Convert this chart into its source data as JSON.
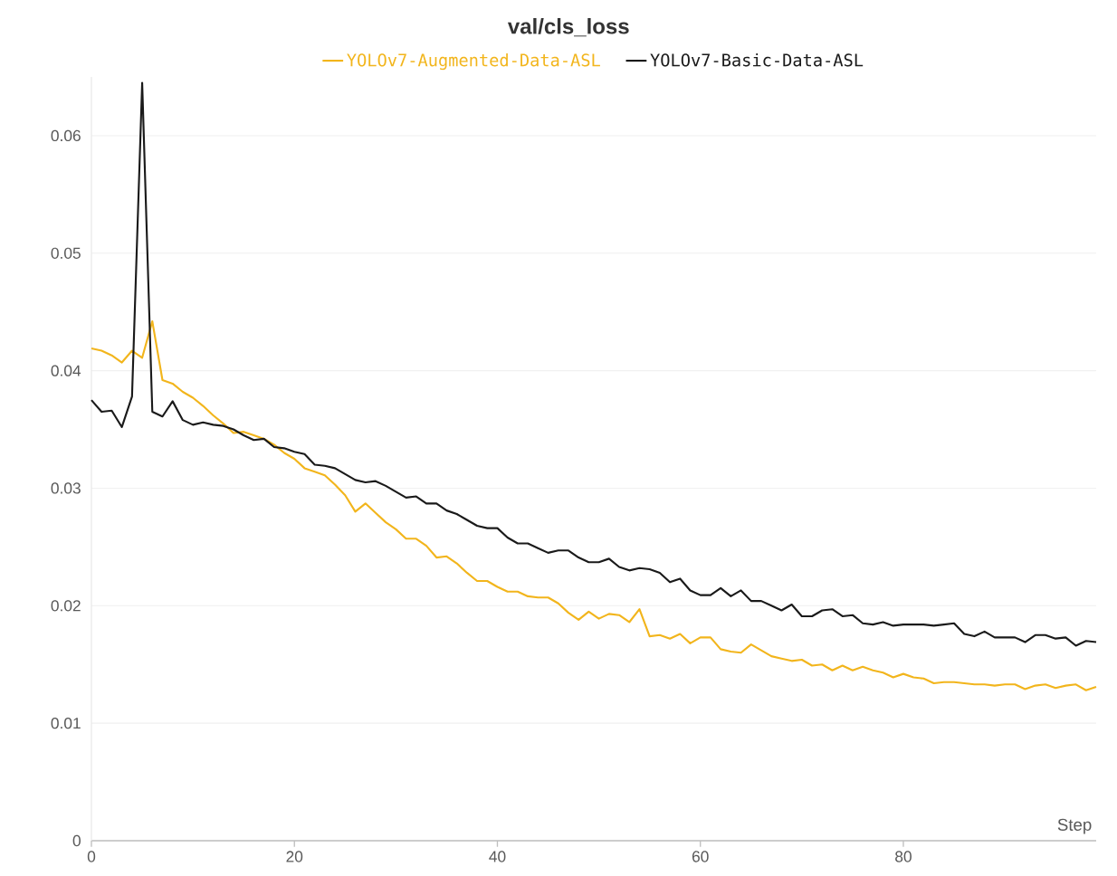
{
  "chart_data": {
    "type": "line",
    "title": "val/cls_loss",
    "xlabel": "Step",
    "x": [
      0,
      1,
      2,
      3,
      4,
      5,
      6,
      7,
      8,
      9,
      10,
      11,
      12,
      13,
      14,
      15,
      16,
      17,
      18,
      19,
      20,
      21,
      22,
      23,
      24,
      25,
      26,
      27,
      28,
      29,
      30,
      31,
      32,
      33,
      34,
      35,
      36,
      37,
      38,
      39,
      40,
      41,
      42,
      43,
      44,
      45,
      46,
      47,
      48,
      49,
      50,
      51,
      52,
      53,
      54,
      55,
      56,
      57,
      58,
      59,
      60,
      61,
      62,
      63,
      64,
      65,
      66,
      67,
      68,
      69,
      70,
      71,
      72,
      73,
      74,
      75,
      76,
      77,
      78,
      79,
      80,
      81,
      82,
      83,
      84,
      85,
      86,
      87,
      88,
      89,
      90,
      91,
      92,
      93,
      94,
      95,
      96,
      97,
      98,
      99
    ],
    "series": [
      {
        "name": "YOLOv7-Augmented-Data-ASL",
        "color": "#f2b51c",
        "values": [
          0.0419,
          0.0417,
          0.0413,
          0.0407,
          0.0417,
          0.0411,
          0.0442,
          0.0392,
          0.0389,
          0.0382,
          0.0377,
          0.037,
          0.0362,
          0.0355,
          0.0347,
          0.0348,
          0.0345,
          0.0342,
          0.0337,
          0.033,
          0.0325,
          0.0317,
          0.0314,
          0.0311,
          0.0303,
          0.0294,
          0.028,
          0.0287,
          0.0279,
          0.0271,
          0.0265,
          0.0257,
          0.0257,
          0.0251,
          0.0241,
          0.0242,
          0.0236,
          0.0228,
          0.0221,
          0.0221,
          0.0216,
          0.0212,
          0.0212,
          0.0208,
          0.0207,
          0.0207,
          0.0202,
          0.0194,
          0.0188,
          0.0195,
          0.0189,
          0.0193,
          0.0192,
          0.0186,
          0.0197,
          0.0174,
          0.0175,
          0.0172,
          0.0176,
          0.0168,
          0.0173,
          0.0173,
          0.0163,
          0.0161,
          0.016,
          0.0167,
          0.0162,
          0.0157,
          0.0155,
          0.0153,
          0.0154,
          0.0149,
          0.015,
          0.0145,
          0.0149,
          0.0145,
          0.0148,
          0.0145,
          0.0143,
          0.0139,
          0.0142,
          0.0139,
          0.0138,
          0.0134,
          0.0135,
          0.0135,
          0.0134,
          0.0133,
          0.0133,
          0.0132,
          0.0133,
          0.0133,
          0.0129,
          0.0132,
          0.0133,
          0.013,
          0.0132,
          0.0133,
          0.0128,
          0.0131
        ]
      },
      {
        "name": "YOLOv7-Basic-Data-ASL",
        "color": "#1a1a1a",
        "values": [
          0.0375,
          0.0365,
          0.0366,
          0.0352,
          0.0378,
          0.0645,
          0.0365,
          0.0361,
          0.0374,
          0.0358,
          0.0354,
          0.0356,
          0.0354,
          0.0353,
          0.035,
          0.0345,
          0.0341,
          0.0342,
          0.0335,
          0.0334,
          0.0331,
          0.0329,
          0.032,
          0.0319,
          0.0317,
          0.0312,
          0.0307,
          0.0305,
          0.0306,
          0.0302,
          0.0297,
          0.0292,
          0.0293,
          0.0287,
          0.0287,
          0.0281,
          0.0278,
          0.0273,
          0.0268,
          0.0266,
          0.0266,
          0.0258,
          0.0253,
          0.0253,
          0.0249,
          0.0245,
          0.0247,
          0.0247,
          0.0241,
          0.0237,
          0.0237,
          0.024,
          0.0233,
          0.023,
          0.0232,
          0.0231,
          0.0228,
          0.022,
          0.0223,
          0.0213,
          0.0209,
          0.0209,
          0.0215,
          0.0208,
          0.0213,
          0.0204,
          0.0204,
          0.02,
          0.0196,
          0.0201,
          0.0191,
          0.0191,
          0.0196,
          0.0197,
          0.0191,
          0.0192,
          0.0185,
          0.0184,
          0.0186,
          0.0183,
          0.0184,
          0.0184,
          0.0184,
          0.0183,
          0.0184,
          0.0185,
          0.0176,
          0.0174,
          0.0178,
          0.0173,
          0.0173,
          0.0173,
          0.0169,
          0.0175,
          0.0175,
          0.0172,
          0.0173,
          0.0166,
          0.017,
          0.0169
        ]
      }
    ],
    "xlim": [
      0,
      99
    ],
    "ylim": [
      0,
      0.065
    ],
    "xticks": [
      0,
      20,
      40,
      60,
      80
    ],
    "yticks": [
      0,
      0.01,
      0.02,
      0.03,
      0.04,
      0.05,
      0.06
    ],
    "grid": "y",
    "legend": "top",
    "marker": "none",
    "line_style": "solid"
  }
}
